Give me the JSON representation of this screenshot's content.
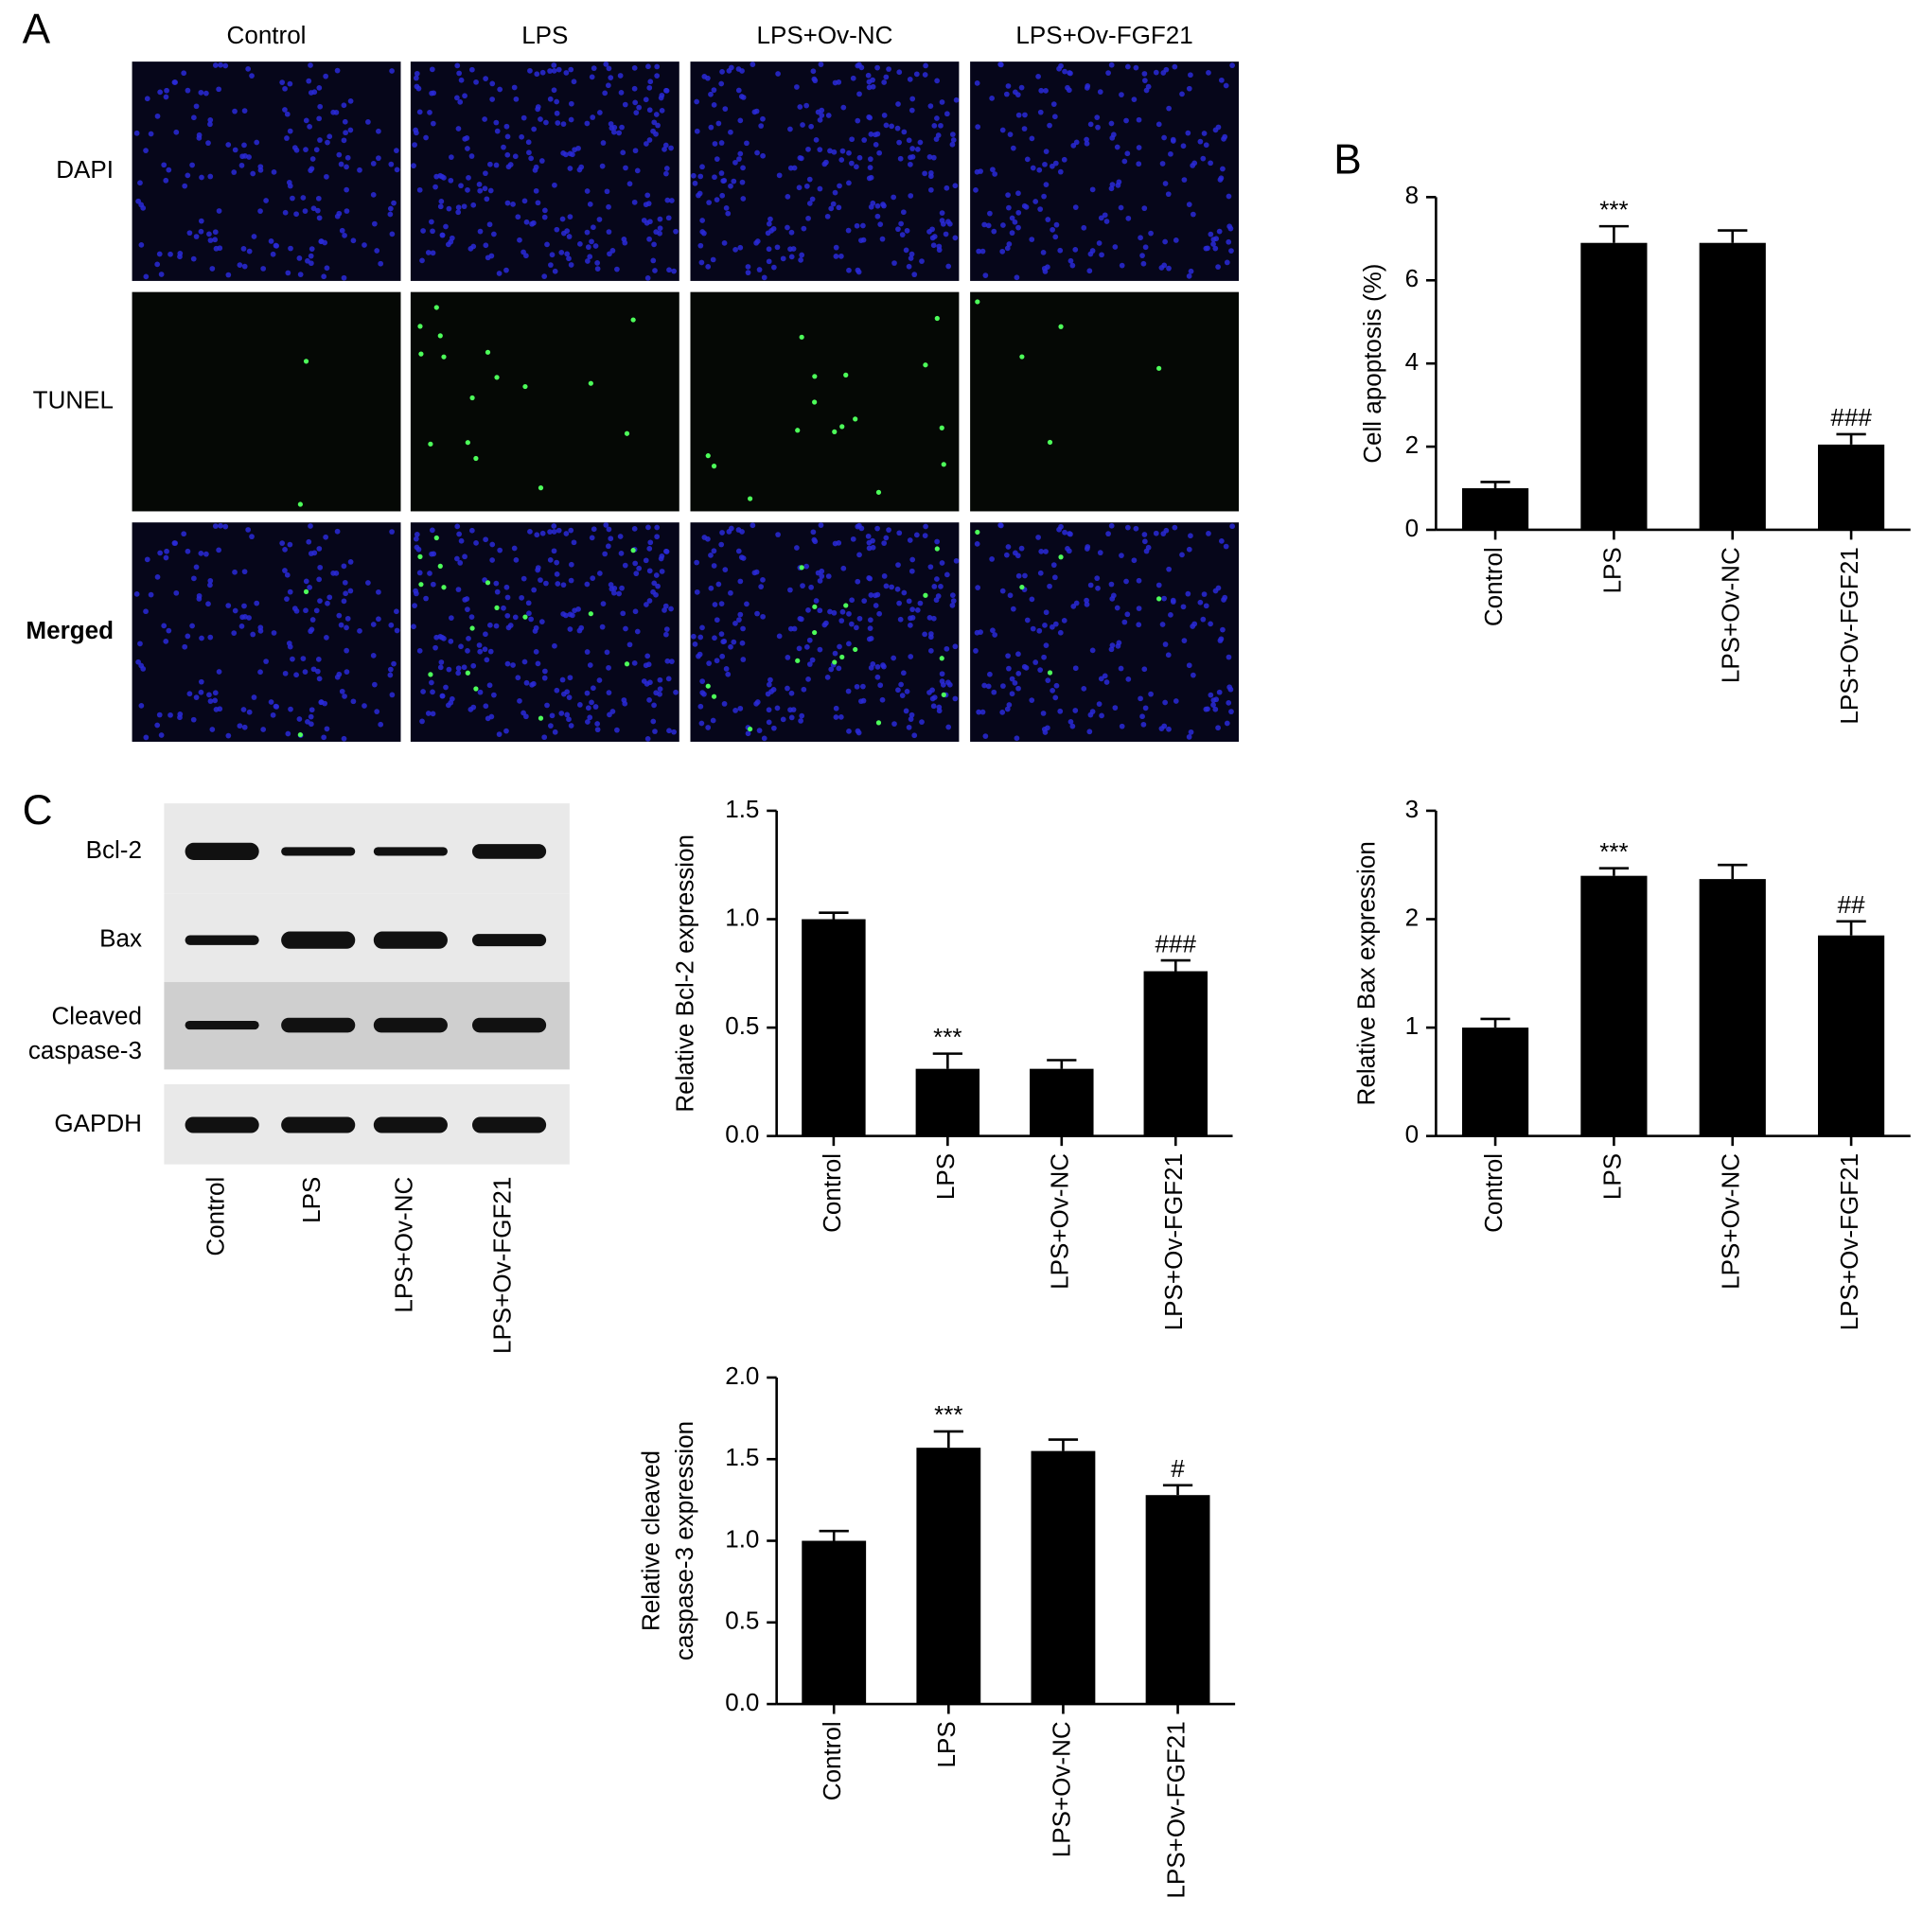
{
  "panel_a": {
    "label": "A",
    "columns": [
      "Control",
      "LPS",
      "LPS+Ov-NC",
      "LPS+Ov-FGF21"
    ],
    "rows": [
      "DAPI",
      "TUNEL",
      "Merged"
    ]
  },
  "panel_c": {
    "label": "C",
    "blot_rows": [
      [
        "Bcl-2"
      ],
      [
        "Bax"
      ],
      [
        "Cleaved",
        "caspase-3"
      ],
      [
        "GAPDH"
      ]
    ],
    "lanes": [
      "Control",
      "LPS",
      "LPS+Ov-NC",
      "LPS+Ov-FGF21"
    ]
  },
  "chart_data": [
    {
      "type": "bar",
      "panel": "B",
      "ylabel": [
        "Cell apoptosis (%)"
      ],
      "categories": [
        "Control",
        "LPS",
        "LPS+Ov-NC",
        "LPS+Ov-FGF21"
      ],
      "values": [
        1.0,
        6.9,
        6.9,
        2.05
      ],
      "errors": [
        0.15,
        0.4,
        0.3,
        0.25
      ],
      "annotations": [
        null,
        "***",
        null,
        "###"
      ],
      "color": "#000000",
      "ylim": [
        0,
        8
      ],
      "yticks": [
        0,
        2,
        4,
        6,
        8
      ]
    },
    {
      "type": "bar",
      "ylabel": [
        "Relative Bcl-2 expression"
      ],
      "categories": [
        "Control",
        "LPS",
        "LPS+Ov-NC",
        "LPS+Ov-FGF21"
      ],
      "values": [
        1.0,
        0.31,
        0.31,
        0.76
      ],
      "errors": [
        0.03,
        0.07,
        0.04,
        0.05
      ],
      "annotations": [
        null,
        "***",
        null,
        "###"
      ],
      "color": "#000000",
      "ylim": [
        0,
        1.5
      ],
      "yticks": [
        {
          "value": 0,
          "label": "0.0"
        },
        0.5,
        {
          "value": 1,
          "label": "1.0"
        },
        1.5
      ]
    },
    {
      "type": "bar",
      "ylabel": [
        "Relative Bax expression"
      ],
      "categories": [
        "Control",
        "LPS",
        "LPS+Ov-NC",
        "LPS+Ov-FGF21"
      ],
      "values": [
        1.0,
        2.4,
        2.37,
        1.85
      ],
      "errors": [
        0.08,
        0.07,
        0.13,
        0.13
      ],
      "annotations": [
        null,
        "***",
        null,
        "##"
      ],
      "color": "#000000",
      "ylim": [
        0,
        3
      ],
      "yticks": [
        0,
        1,
        2,
        3
      ]
    },
    {
      "type": "bar",
      "ylabel": [
        "Relative cleaved",
        "caspase-3 expression"
      ],
      "categories": [
        "Control",
        "LPS",
        "LPS+Ov-NC",
        "LPS+Ov-FGF21"
      ],
      "values": [
        1.0,
        1.57,
        1.55,
        1.28
      ],
      "errors": [
        0.06,
        0.1,
        0.07,
        0.06
      ],
      "annotations": [
        null,
        "***",
        null,
        "#"
      ],
      "color": "#000000",
      "ylim": [
        0,
        2
      ],
      "yticks": [
        {
          "value": 0,
          "label": "0.0"
        },
        0.5,
        {
          "value": 1,
          "label": "1.0"
        },
        1.5,
        {
          "value": 2,
          "label": "2.0"
        }
      ]
    }
  ]
}
